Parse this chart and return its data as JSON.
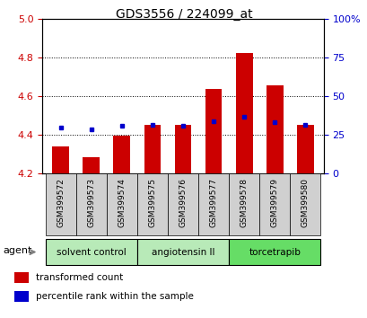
{
  "title": "GDS3556 / 224099_at",
  "samples": [
    "GSM399572",
    "GSM399573",
    "GSM399574",
    "GSM399575",
    "GSM399576",
    "GSM399577",
    "GSM399578",
    "GSM399579",
    "GSM399580"
  ],
  "red_values": [
    4.34,
    4.285,
    4.395,
    4.45,
    4.45,
    4.64,
    4.825,
    4.655,
    4.45
  ],
  "blue_values": [
    4.435,
    4.43,
    4.445,
    4.45,
    4.445,
    4.47,
    4.495,
    4.465,
    4.45
  ],
  "ymin": 4.2,
  "ymax": 5.0,
  "yticks_left": [
    4.2,
    4.4,
    4.6,
    4.8,
    5.0
  ],
  "yticks_right": [
    0,
    25,
    50,
    75,
    100
  ],
  "groups": [
    {
      "label": "solvent control",
      "indices": [
        0,
        1,
        2
      ],
      "color": "#b8eab8"
    },
    {
      "label": "angiotensin II",
      "indices": [
        3,
        4,
        5
      ],
      "color": "#b8eab8"
    },
    {
      "label": "torcetrapib",
      "indices": [
        6,
        7,
        8
      ],
      "color": "#66dd66"
    }
  ],
  "bar_color": "#cc0000",
  "dot_color": "#0000cc",
  "bar_width": 0.55,
  "label_color_left": "#cc0000",
  "label_color_right": "#0000cc",
  "agent_label": "agent",
  "tick_bg_color": "#d0d0d0",
  "legend_items": [
    {
      "label": "transformed count",
      "color": "#cc0000"
    },
    {
      "label": "percentile rank within the sample",
      "color": "#0000cc"
    }
  ]
}
